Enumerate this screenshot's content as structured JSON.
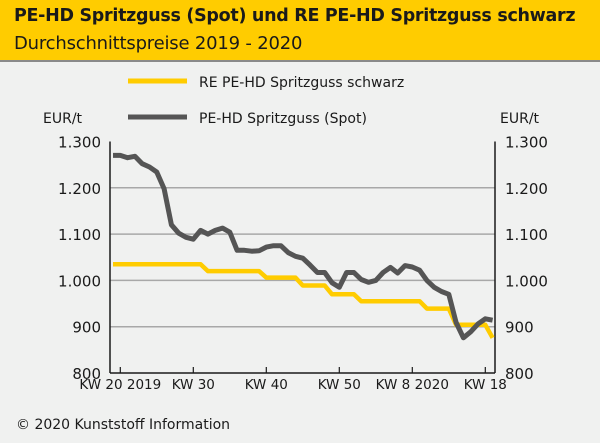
{
  "header": {
    "title": "PE-HD Spritzguss (Spot) und RE PE-HD Spritzguss schwarz",
    "subtitle": "Durchschnittspreise 2019 - 2020"
  },
  "footer": {
    "copyright": "© 2020 Kunststoff Information"
  },
  "chart_data": {
    "type": "line",
    "title": "PE-HD Spritzguss (Spot) und RE PE-HD Spritzguss schwarz",
    "subtitle": "Durchschnittspreise 2019 - 2020",
    "ylabel_left": "EUR/t",
    "ylabel_right": "EUR/t",
    "ylim": [
      800,
      1300
    ],
    "yticks": [
      800,
      900,
      1000,
      1100,
      1200,
      1300
    ],
    "ytick_labels": [
      "800",
      "900",
      "1.000",
      "1.100",
      "1.200",
      "1.300"
    ],
    "grid": "horizontal",
    "legend": "top",
    "x_start": "KW 19 2019",
    "x_end": "KW 19 2020",
    "xticks": [
      {
        "week_index": 1,
        "label": "KW 20 2019"
      },
      {
        "week_index": 11,
        "label": "KW 30"
      },
      {
        "week_index": 21,
        "label": "KW 40"
      },
      {
        "week_index": 31,
        "label": "KW 50"
      },
      {
        "week_index": 41,
        "label": "KW 8 2020"
      },
      {
        "week_index": 51,
        "label": "KW 18"
      }
    ],
    "series": [
      {
        "name": "RE PE-HD Spritzguss schwarz",
        "color": "#ffcc00",
        "values": [
          1035,
          1035,
          1035,
          1035,
          1035,
          1035,
          1035,
          1035,
          1035,
          1035,
          1035,
          1035,
          1035,
          1020,
          1020,
          1020,
          1020,
          1020,
          1020,
          1020,
          1020,
          1006,
          1006,
          1006,
          1006,
          1006,
          989,
          989,
          989,
          989,
          970,
          970,
          970,
          970,
          955,
          955,
          955,
          955,
          955,
          955,
          955,
          955,
          955,
          939,
          939,
          939,
          939,
          904,
          904,
          904,
          904,
          904,
          876
        ]
      },
      {
        "name": "PE-HD Spritzguss (Spot)",
        "color": "#555555",
        "values": [
          1270,
          1270,
          1265,
          1268,
          1252,
          1245,
          1234,
          1198,
          1120,
          1102,
          1093,
          1089,
          1108,
          1100,
          1108,
          1113,
          1104,
          1065,
          1065,
          1063,
          1064,
          1072,
          1075,
          1075,
          1060,
          1052,
          1048,
          1033,
          1017,
          1017,
          995,
          985,
          1017,
          1017,
          1002,
          996,
          1000,
          1017,
          1028,
          1016,
          1032,
          1029,
          1022,
          1000,
          985,
          976,
          970,
          909,
          876,
          889,
          906,
          917,
          914
        ]
      }
    ]
  }
}
